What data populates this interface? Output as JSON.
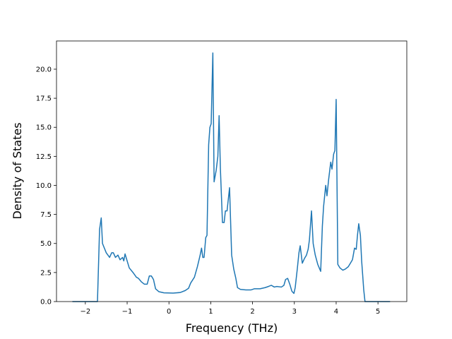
{
  "chart_data": {
    "type": "line",
    "xlabel": "Frequency (THz)",
    "ylabel": "Density of States",
    "color": "#1f77b4",
    "grid": false,
    "xlim": [
      -2.69,
      5.69
    ],
    "ylim": [
      0,
      22.43
    ],
    "xticks": [
      {
        "value": -2,
        "label": "−2"
      },
      {
        "value": -1,
        "label": "−1"
      },
      0,
      1,
      2,
      3,
      4,
      5
    ],
    "yticks": [
      {
        "value": 0,
        "label": "0.0"
      },
      {
        "value": 2.5,
        "label": "2.5"
      },
      {
        "value": 5,
        "label": "5.0"
      },
      {
        "value": 7.5,
        "label": "7.5"
      },
      {
        "value": 10,
        "label": "10.0"
      },
      {
        "value": 12.5,
        "label": "12.5"
      },
      {
        "value": 15,
        "label": "15.0"
      },
      {
        "value": 17.5,
        "label": "17.5"
      },
      {
        "value": 20,
        "label": "20.0"
      }
    ],
    "x": [
      -2.31,
      -1.71,
      -1.66,
      -1.62,
      -1.59,
      -1.5,
      -1.42,
      -1.37,
      -1.33,
      -1.28,
      -1.22,
      -1.17,
      -1.11,
      -1.08,
      -1.05,
      -1.0,
      -0.95,
      -0.86,
      -0.78,
      -0.73,
      -0.66,
      -0.59,
      -0.52,
      -0.47,
      -0.42,
      -0.37,
      -0.32,
      -0.24,
      -0.12,
      0.1,
      0.27,
      0.39,
      0.47,
      0.52,
      0.61,
      0.68,
      0.74,
      0.78,
      0.81,
      0.84,
      0.88,
      0.91,
      0.95,
      0.98,
      1.01,
      1.05,
      1.08,
      1.13,
      1.17,
      1.2,
      1.23,
      1.28,
      1.32,
      1.35,
      1.39,
      1.42,
      1.45,
      1.5,
      1.55,
      1.6,
      1.64,
      1.71,
      1.84,
      1.96,
      2.04,
      2.18,
      2.3,
      2.38,
      2.45,
      2.52,
      2.58,
      2.69,
      2.75,
      2.79,
      2.84,
      2.89,
      2.94,
      2.99,
      3.02,
      3.07,
      3.11,
      3.14,
      3.19,
      3.24,
      3.29,
      3.33,
      3.36,
      3.41,
      3.45,
      3.5,
      3.56,
      3.63,
      3.67,
      3.7,
      3.75,
      3.78,
      3.82,
      3.87,
      3.9,
      3.94,
      3.97,
      4.0,
      4.04,
      4.09,
      4.16,
      4.22,
      4.29,
      4.34,
      4.39,
      4.44,
      4.48,
      4.51,
      4.54,
      4.58,
      4.61,
      4.66,
      4.69,
      4.92,
      5.29
    ],
    "values": [
      0,
      0,
      6.2,
      7.2,
      5.0,
      4.2,
      3.8,
      4.2,
      4.2,
      3.8,
      4.0,
      3.6,
      3.8,
      3.5,
      4.1,
      3.5,
      2.9,
      2.5,
      2.1,
      2.0,
      1.7,
      1.5,
      1.5,
      2.2,
      2.2,
      1.9,
      1.1,
      0.85,
      0.75,
      0.73,
      0.78,
      0.95,
      1.15,
      1.6,
      2.1,
      3.0,
      3.9,
      4.6,
      3.8,
      3.8,
      5.5,
      5.7,
      13.5,
      15.0,
      15.3,
      21.4,
      10.3,
      11.3,
      12.5,
      16.0,
      11.5,
      6.8,
      6.8,
      7.8,
      7.8,
      8.8,
      9.8,
      4.0,
      2.8,
      2.0,
      1.2,
      1.05,
      1.0,
      1.0,
      1.1,
      1.1,
      1.2,
      1.3,
      1.4,
      1.25,
      1.3,
      1.25,
      1.4,
      1.9,
      2.0,
      1.5,
      0.9,
      0.7,
      1.2,
      2.8,
      4.2,
      4.8,
      3.3,
      3.7,
      4.0,
      4.5,
      5.3,
      7.8,
      5.0,
      4.0,
      3.2,
      2.6,
      6.5,
      8.2,
      10.0,
      9.1,
      10.5,
      12.0,
      11.4,
      12.7,
      13.0,
      17.4,
      3.2,
      2.9,
      2.7,
      2.8,
      3.0,
      3.3,
      3.6,
      4.6,
      4.5,
      5.7,
      6.7,
      5.7,
      3.5,
      1.0,
      0,
      0,
      0
    ]
  }
}
